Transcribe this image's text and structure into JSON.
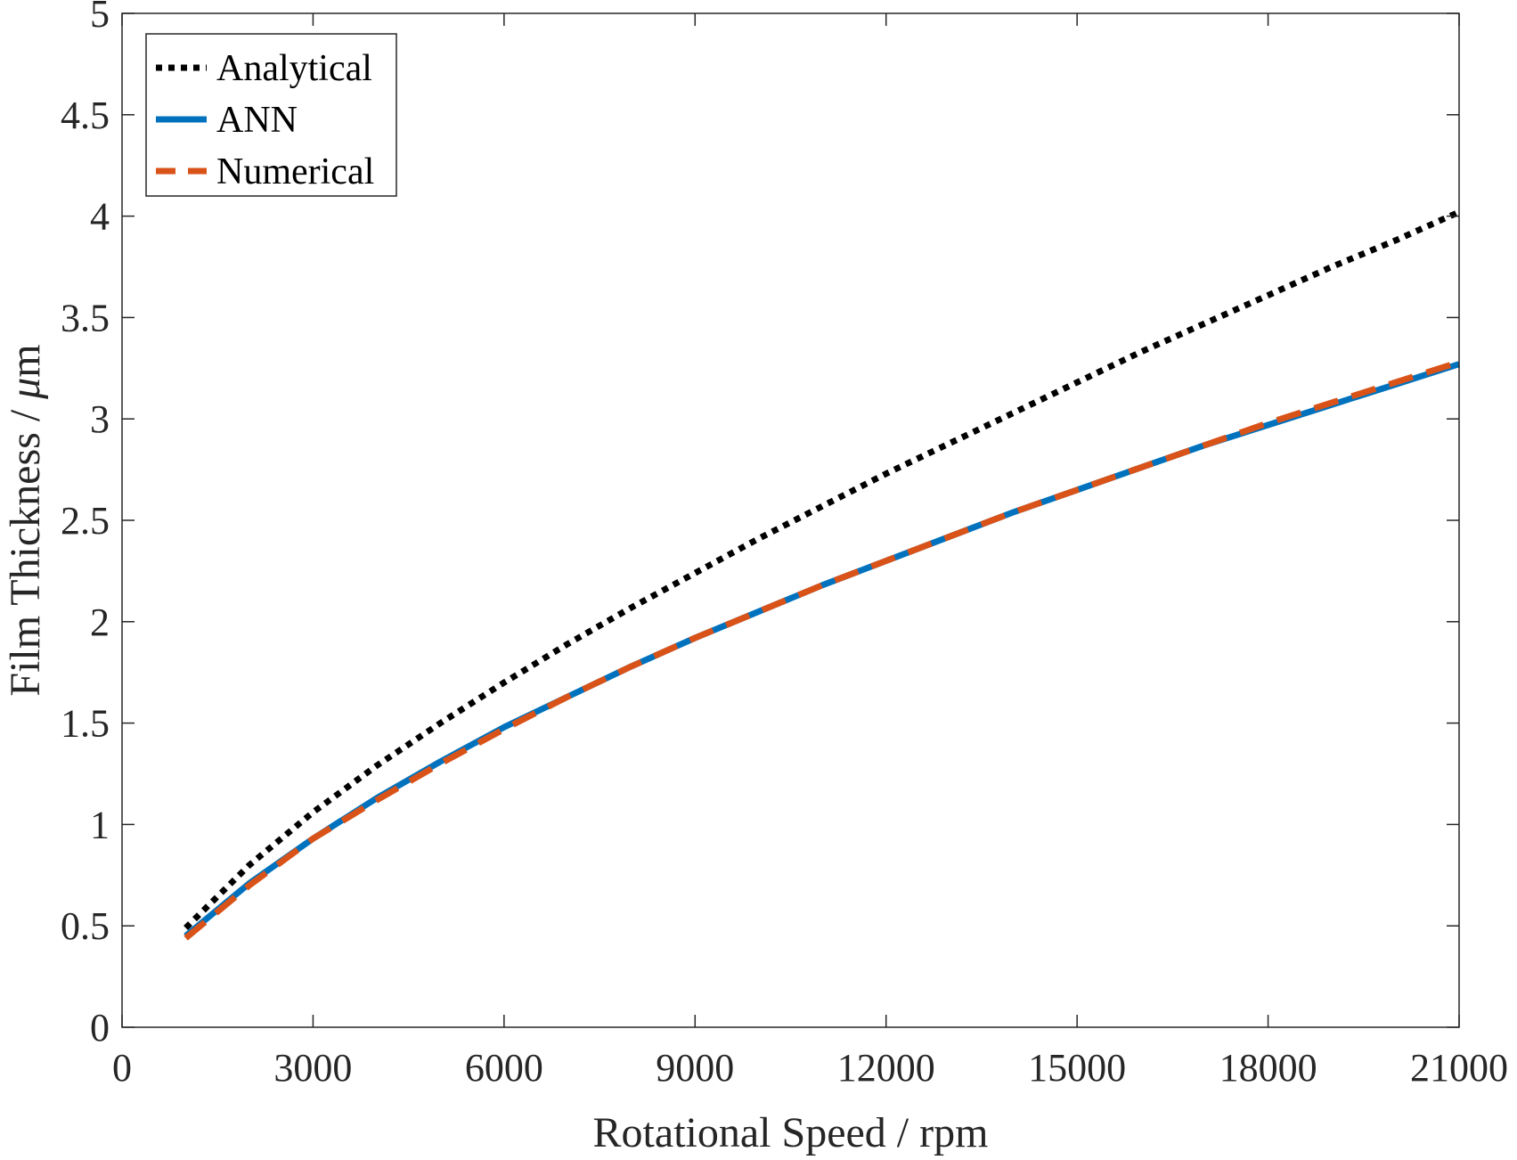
{
  "chart_data": {
    "type": "line",
    "title": "",
    "xlabel": "Rotational Speed / rpm",
    "ylabel": "Film Thickness / μm",
    "ylabel_parts": {
      "prefix": "Film Thickness / ",
      "symbol": "μ",
      "suffix": "m"
    },
    "xlim": [
      0,
      21000
    ],
    "ylim": [
      0,
      5
    ],
    "xticks": [
      0,
      3000,
      6000,
      9000,
      12000,
      15000,
      18000,
      21000
    ],
    "xtick_labels": [
      "0",
      "3000",
      "6000",
      "9000",
      "12000",
      "15000",
      "18000",
      "21000"
    ],
    "yticks": [
      0,
      0.5,
      1,
      1.5,
      2,
      2.5,
      3,
      3.5,
      4,
      4.5,
      5
    ],
    "ytick_labels": [
      "0",
      "0.5",
      "1",
      "1.5",
      "2",
      "2.5",
      "3",
      "3.5",
      "4",
      "4.5",
      "5"
    ],
    "grid": false,
    "legend_position": "top-left",
    "series": [
      {
        "name": "Analytical",
        "style": "dotted",
        "color": "#000000",
        "x": [
          1000,
          2000,
          3000,
          4000,
          5000,
          6000,
          7000,
          8000,
          9000,
          10000,
          11000,
          12000,
          13000,
          14000,
          15000,
          16000,
          17000,
          18000,
          19000,
          20000,
          21000
        ],
        "y": [
          0.49,
          0.8,
          1.06,
          1.29,
          1.5,
          1.7,
          1.89,
          2.07,
          2.24,
          2.41,
          2.57,
          2.73,
          2.88,
          3.03,
          3.18,
          3.33,
          3.47,
          3.61,
          3.75,
          3.88,
          4.02
        ]
      },
      {
        "name": "ANN",
        "style": "solid",
        "color": "#0072BD",
        "x": [
          1000,
          2000,
          3000,
          4000,
          5000,
          6000,
          7000,
          8000,
          9000,
          10000,
          11000,
          12000,
          13000,
          14000,
          15000,
          16000,
          17000,
          18000,
          19000,
          20000,
          21000
        ],
        "y": [
          0.45,
          0.71,
          0.93,
          1.13,
          1.31,
          1.48,
          1.63,
          1.78,
          1.92,
          2.05,
          2.18,
          2.3,
          2.42,
          2.54,
          2.65,
          2.76,
          2.87,
          2.97,
          3.07,
          3.17,
          3.27
        ]
      },
      {
        "name": "Numerical",
        "style": "dashed",
        "color": "#D95319",
        "x": [
          1000,
          2000,
          3000,
          4000,
          5000,
          6000,
          7000,
          8000,
          9000,
          10000,
          11000,
          12000,
          13000,
          14000,
          15000,
          16000,
          17000,
          18000,
          19000,
          20000,
          21000
        ],
        "y": [
          0.44,
          0.7,
          0.93,
          1.12,
          1.3,
          1.47,
          1.63,
          1.78,
          1.92,
          2.05,
          2.18,
          2.3,
          2.42,
          2.54,
          2.65,
          2.76,
          2.87,
          2.98,
          3.08,
          3.18,
          3.28
        ]
      }
    ]
  }
}
